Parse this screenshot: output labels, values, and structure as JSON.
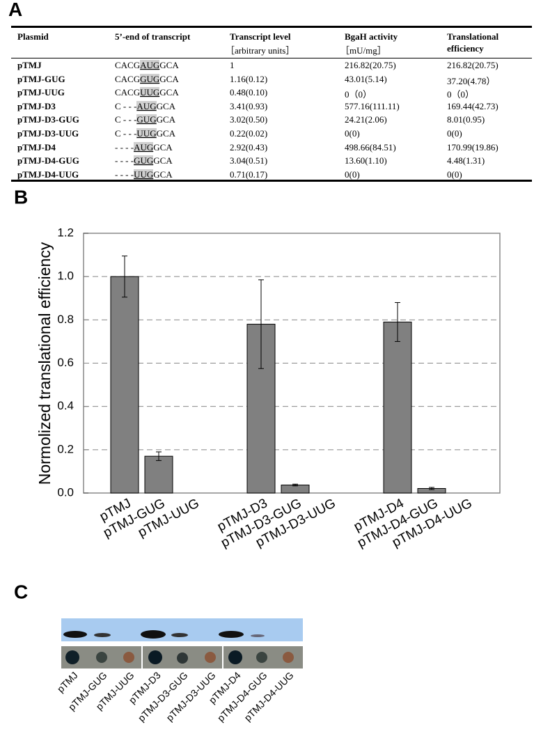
{
  "panel_a": {
    "label": "A",
    "columns": [
      {
        "title": "Plasmid"
      },
      {
        "title": "5’-end of transcript"
      },
      {
        "title": "Transcript level",
        "unit": "［arbitrary units］"
      },
      {
        "title": "BgaH activity",
        "unit": "［mU/mg］"
      },
      {
        "title": "Translational efficiency"
      }
    ],
    "rows": [
      {
        "plasmid": "pTMJ",
        "seq": [
          "CACG",
          "AUG",
          "GCA"
        ],
        "transcript": "1",
        "activity": "216.82(20.75)",
        "efficiency": "216.82(20.75)"
      },
      {
        "plasmid": "pTMJ-GUG",
        "seq": [
          "CACG",
          "GUG",
          "GCA"
        ],
        "transcript": "1.16(0.12)",
        "activity": "43.01(5.14)",
        "efficiency": "37.20(4.78）"
      },
      {
        "plasmid": "pTMJ-UUG",
        "seq": [
          "CACG",
          "UUG",
          "GCA"
        ],
        "transcript": "0.48(0.10)",
        "activity": "0（0）",
        "efficiency": "0（0）"
      },
      {
        "plasmid": "pTMJ-D3",
        "seq": [
          "C - - -",
          "AUG",
          "GCA"
        ],
        "transcript": "3.41(0.93)",
        "activity": "577.16(111.11)",
        "efficiency": "169.44(42.73)"
      },
      {
        "plasmid": "pTMJ-D3-GUG",
        "seq": [
          "C - - -",
          "GUG",
          "GCA"
        ],
        "transcript": "3.02(0.50)",
        "activity": "24.21(2.06)",
        "efficiency": "8.01(0.95)"
      },
      {
        "plasmid": "pTMJ-D3-UUG",
        "seq": [
          "C - - -",
          "UUG",
          "GCA"
        ],
        "transcript": "0.22(0.02)",
        "activity": "0(0)",
        "efficiency": "0(0)"
      },
      {
        "plasmid": "pTMJ-D4",
        "seq": [
          "- - - -",
          "AUG",
          "GCA"
        ],
        "transcript": "2.92(0.43)",
        "activity": "498.66(84.51)",
        "efficiency": "170.99(19.86)"
      },
      {
        "plasmid": "pTMJ-D4-GUG",
        "seq": [
          "- - - -",
          "GUG",
          "GCA"
        ],
        "transcript": "3.04(0.51)",
        "activity": "13.60(1.10)",
        "efficiency": "4.48(1.31)"
      },
      {
        "plasmid": "pTMJ-D4-UUG",
        "seq": [
          "- - - -",
          "UUG",
          "GCA"
        ],
        "transcript": "0.71(0.17)",
        "activity": "0(0)",
        "efficiency": "0(0)"
      }
    ]
  },
  "chart_data": {
    "type": "bar",
    "label": "B",
    "y_label": "Normolized translational efficiency",
    "categories": [
      "pTMJ",
      "pTMJ-GUG",
      "pTMJ-UUG",
      null,
      "pTMJ-D3",
      "pTMJ-D3-GUG",
      "pTMJ-D3-UUG",
      null,
      "pTMJ-D4",
      "pTMJ-D4-GUG",
      "pTMJ-D4-UUG"
    ],
    "values": [
      1.0,
      0.17,
      0,
      null,
      0.78,
      0.037,
      0,
      null,
      0.79,
      0.021,
      0
    ],
    "errors": [
      0.095,
      0.02,
      0,
      null,
      0.205,
      0.004,
      0,
      null,
      0.09,
      0.005,
      0
    ],
    "color": "#808080",
    "ylim": [
      0,
      1.2
    ],
    "yticks": [
      {
        "value": 0,
        "label": "0.0"
      },
      0.2,
      0.4,
      0.6,
      0.8,
      {
        "value": 1,
        "label": "1.0"
      },
      1.2
    ],
    "grid": true
  },
  "panel_c": {
    "label": "C",
    "labels": [
      "pTMJ",
      "pTMJ-GUG",
      "pTMJ-UUG",
      "pTMJ-D3",
      "pTMJ-D3-GUG",
      "pTMJ-D3-UUG",
      "pTMJ-D4",
      "pTMJ-D4-GUG",
      "pTMJ-D4-UUG"
    ]
  }
}
